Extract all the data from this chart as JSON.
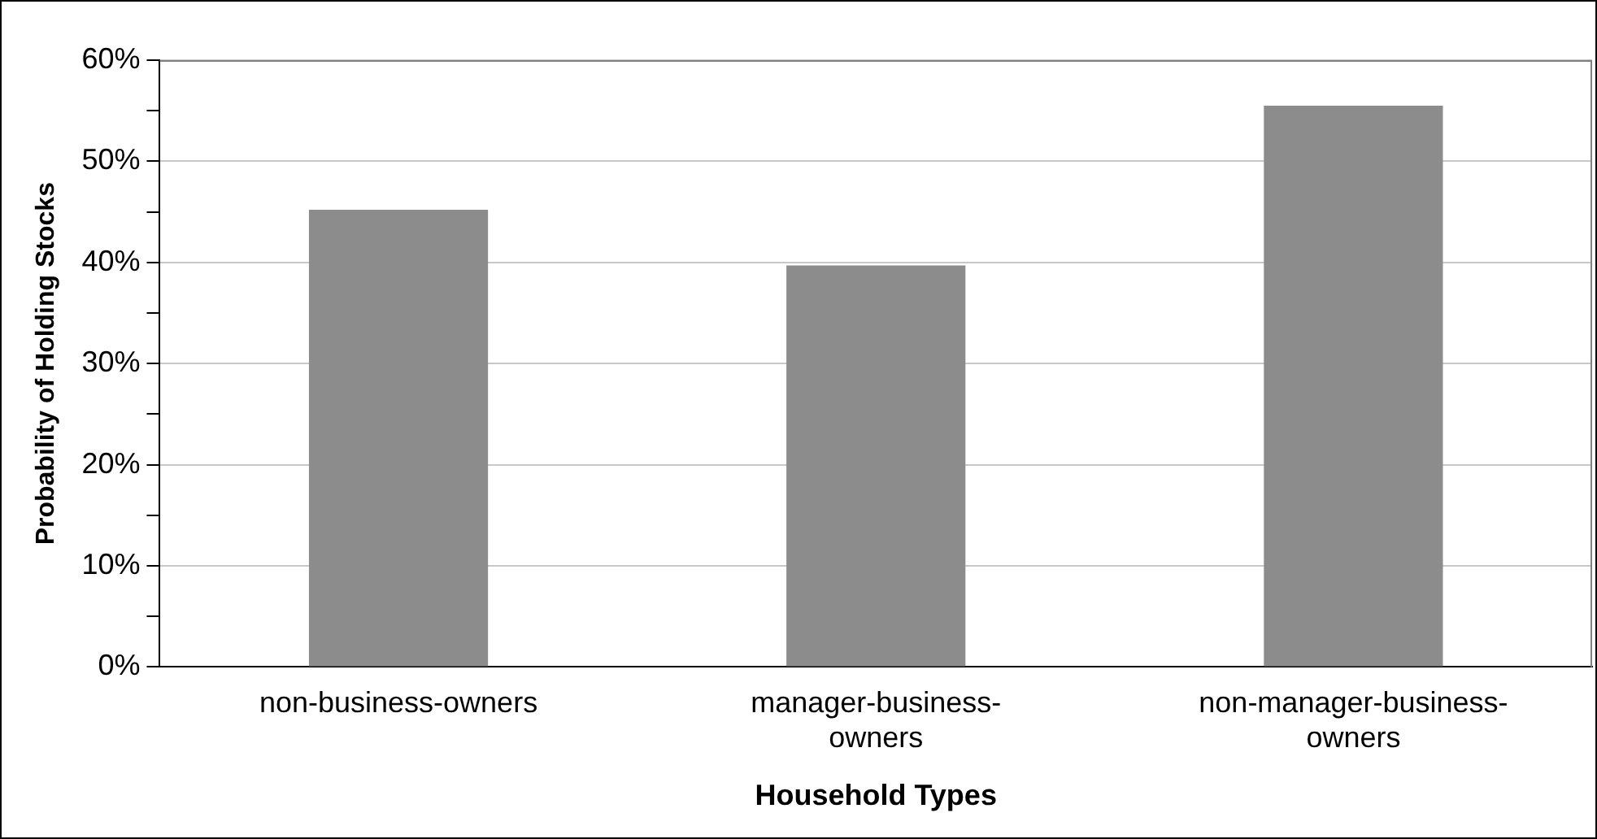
{
  "chart_data": {
    "type": "bar",
    "xlabel": "Household Types",
    "ylabel": "Probability of Holding Stocks",
    "categories": [
      "non-business-owners",
      "manager-business-owners",
      "non-manager-business-owners"
    ],
    "values": [
      45.2,
      39.7,
      55.5
    ],
    "color": "#8c8c8c",
    "ylim": [
      0,
      60
    ],
    "yticks": [
      {
        "value": 0,
        "label": "0%"
      },
      {
        "value": 5,
        "label": null
      },
      {
        "value": 10,
        "label": "10%"
      },
      {
        "value": 15,
        "label": null
      },
      {
        "value": 20,
        "label": "20%"
      },
      {
        "value": 25,
        "label": null
      },
      {
        "value": 30,
        "label": "30%"
      },
      {
        "value": 35,
        "label": null
      },
      {
        "value": 40,
        "label": "40%"
      },
      {
        "value": 45,
        "label": null
      },
      {
        "value": 50,
        "label": "50%"
      },
      {
        "value": 55,
        "label": null
      },
      {
        "value": 60,
        "label": "60%"
      }
    ],
    "grid": "y",
    "legend": false
  }
}
